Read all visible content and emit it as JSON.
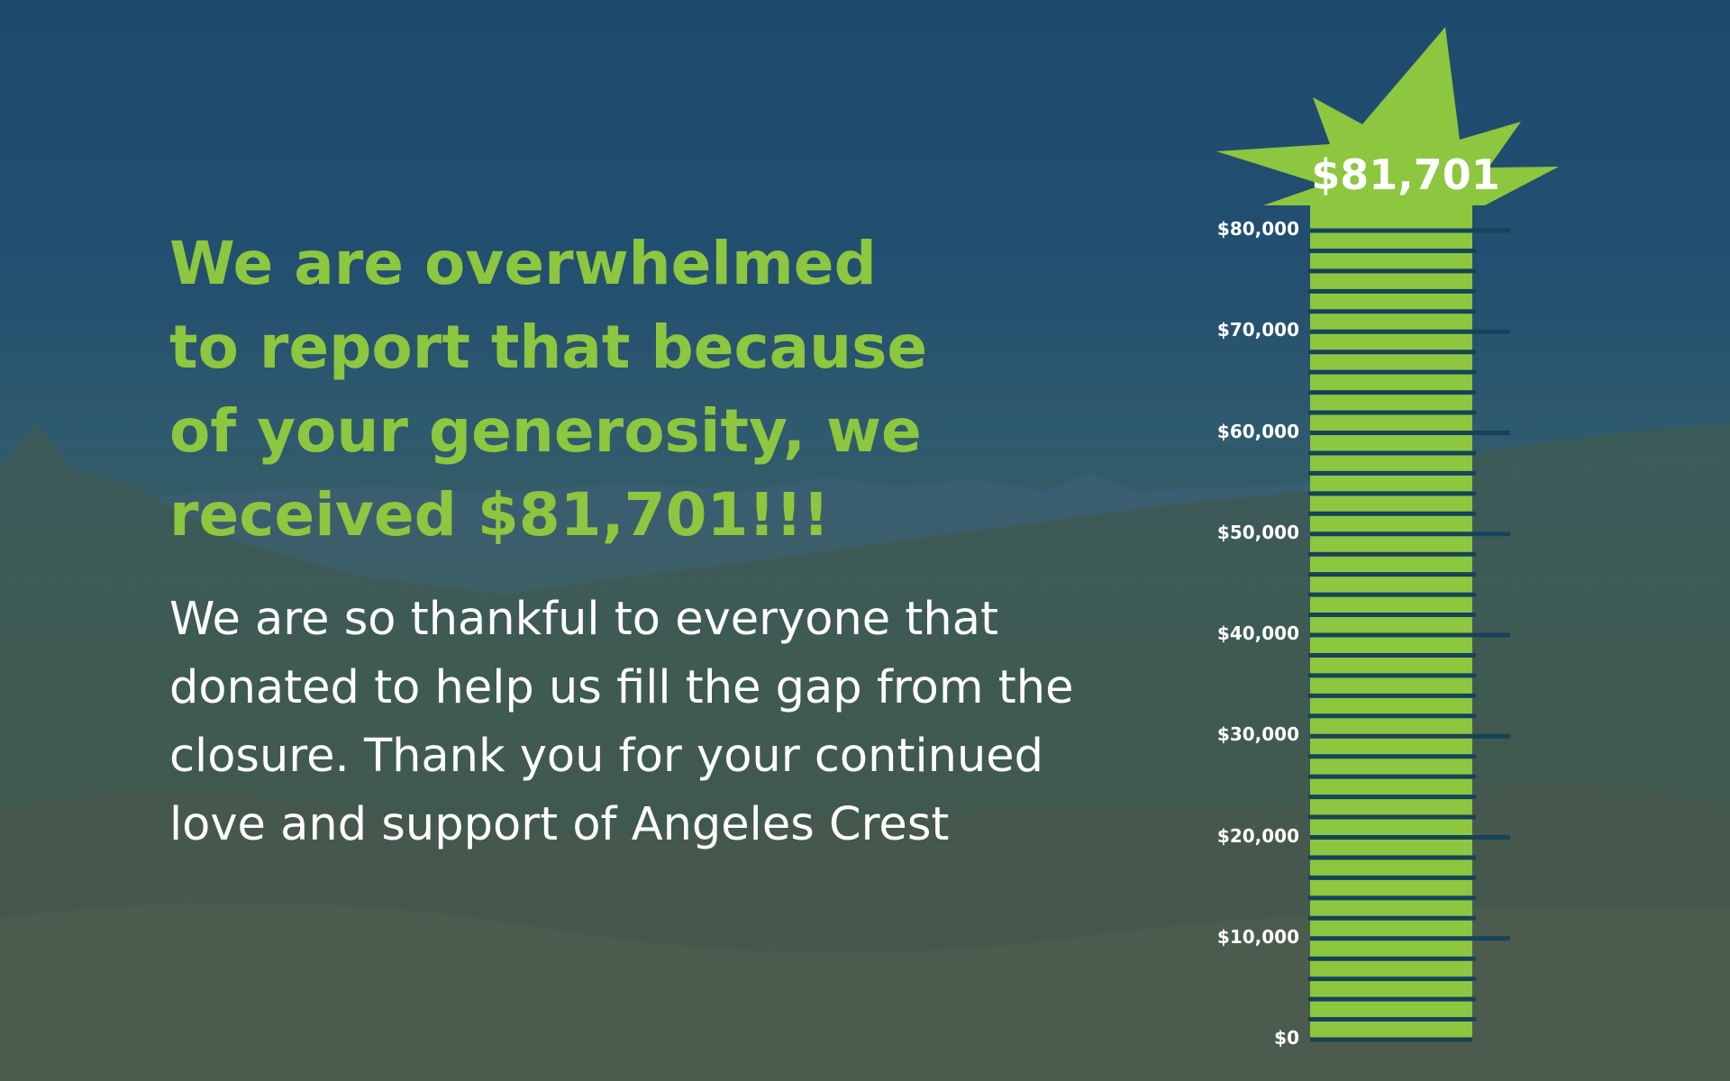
{
  "headline": "We are overwhelmed\nto report that because\nof your generosity, we\nreceived $81,701!!!",
  "body": "We are so thankful to everyone that\ndonated to help us fill the gap from the\nclosure. Thank you for your continued\nlove and support of Angeles Crest",
  "thermometer": {
    "total_label": "$81,701",
    "amount_raised": 81701,
    "scale_max": 80000,
    "tick_labels": [
      "$80,000",
      "$70,000",
      "$60,000",
      "$50,000",
      "$40,000",
      "$30,000",
      "$20,000",
      "$10,000",
      "$0"
    ],
    "tick_values": [
      80000,
      70000,
      60000,
      50000,
      40000,
      30000,
      20000,
      10000,
      0
    ]
  },
  "colors": {
    "accent": "#8dc63f",
    "tick": "#17425a",
    "text": "#ffffff"
  }
}
